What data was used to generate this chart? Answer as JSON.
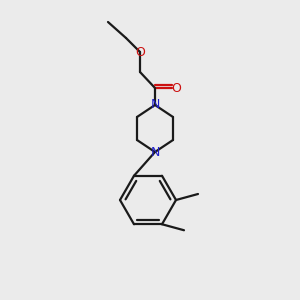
{
  "bg_color": "#ebebeb",
  "bond_color": "#1a1a1a",
  "N_color": "#2020cc",
  "O_color": "#cc1010",
  "line_width": 1.6,
  "figsize": [
    3.0,
    3.0
  ],
  "dpi": 100,
  "xlim": [
    0,
    300
  ],
  "ylim": [
    0,
    300
  ]
}
